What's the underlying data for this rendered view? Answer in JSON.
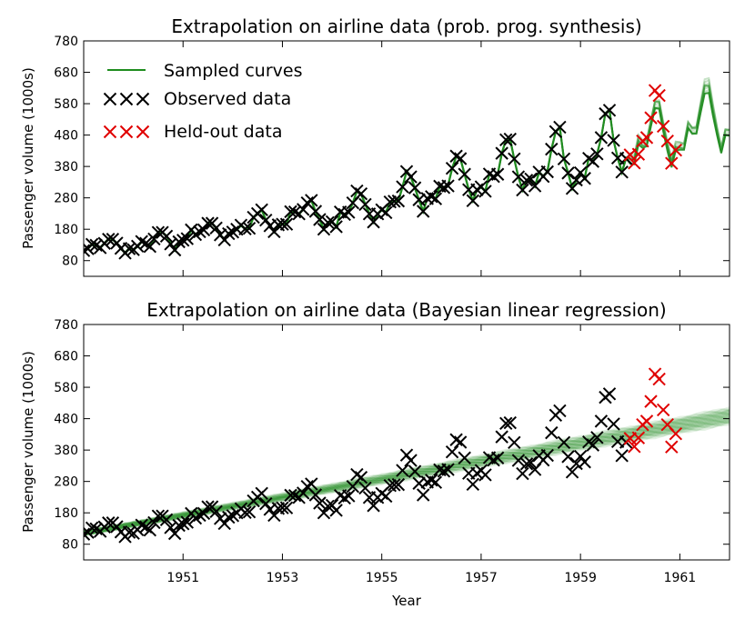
{
  "chart_data": [
    {
      "type": "scatter",
      "title": "Extrapolation on airline data (prob. prog. synthesis)",
      "xlabel": "",
      "ylabel": "Passenger volume (1000s)",
      "xlim": [
        1949.0,
        1962.0
      ],
      "ylim": [
        30,
        780
      ],
      "yticks": [
        80,
        180,
        280,
        380,
        480,
        580,
        680,
        780
      ],
      "xticks": [],
      "legend": {
        "position": "top-left",
        "entries": [
          "Sampled curves",
          "Observed data",
          "Held-out data"
        ]
      },
      "series": [
        {
          "name": "Sampled curves",
          "kind": "line",
          "color": "#1e8c1e",
          "extends_to": 1962.0
        },
        {
          "name": "Observed data",
          "kind": "marker",
          "color": "#000000",
          "x_start": 1949.0,
          "x_end": 1959.75
        },
        {
          "name": "Held-out data",
          "kind": "marker",
          "color": "#e00000",
          "x_start": 1959.833,
          "x_end": 1960.917
        }
      ]
    },
    {
      "type": "scatter",
      "title": "Extrapolation on airline data (Bayesian linear regression)",
      "xlabel": "Year",
      "ylabel": "Passenger volume (1000s)",
      "xlim": [
        1949.0,
        1962.0
      ],
      "ylim": [
        30,
        780
      ],
      "yticks": [
        80,
        180,
        280,
        380,
        480,
        580,
        680,
        780
      ],
      "xticks": [
        "1951",
        "1953",
        "1955",
        "1957",
        "1959",
        "1961"
      ],
      "band": {
        "name": "Sampled curves",
        "color": "#1e8c1e",
        "start": [
          1949.0,
          115
        ],
        "end": [
          1962.0,
          488
        ]
      },
      "series": [
        {
          "name": "Observed data",
          "kind": "marker",
          "color": "#000000",
          "x_start": 1949.0,
          "x_end": 1959.75
        },
        {
          "name": "Held-out data",
          "kind": "marker",
          "color": "#e00000",
          "x_start": 1959.833,
          "x_end": 1960.917
        }
      ]
    }
  ],
  "airline_passengers": {
    "start_year": 1949,
    "months_per_year": 12,
    "values": [
      112,
      118,
      132,
      129,
      121,
      135,
      148,
      148,
      136,
      119,
      104,
      118,
      115,
      126,
      141,
      135,
      125,
      149,
      170,
      170,
      158,
      133,
      114,
      140,
      145,
      150,
      178,
      163,
      172,
      178,
      199,
      199,
      184,
      162,
      146,
      166,
      171,
      180,
      193,
      181,
      183,
      218,
      230,
      242,
      209,
      191,
      172,
      194,
      196,
      196,
      236,
      235,
      229,
      243,
      264,
      272,
      237,
      211,
      180,
      201,
      204,
      188,
      235,
      227,
      234,
      264,
      302,
      293,
      259,
      229,
      203,
      229,
      242,
      233,
      267,
      269,
      270,
      315,
      364,
      347,
      312,
      274,
      237,
      278,
      284,
      277,
      317,
      313,
      318,
      374,
      413,
      405,
      355,
      306,
      271,
      306,
      315,
      301,
      356,
      348,
      355,
      422,
      465,
      467,
      404,
      347,
      305,
      336,
      340,
      318,
      362,
      348,
      363,
      435,
      491,
      505,
      404,
      359,
      310,
      337,
      360,
      342,
      406,
      396,
      420,
      472,
      548,
      559,
      463,
      407,
      362,
      405,
      417,
      391,
      419,
      461,
      472,
      535,
      622,
      606,
      508,
      461,
      390,
      432
    ],
    "held_out_from_index": 132
  }
}
